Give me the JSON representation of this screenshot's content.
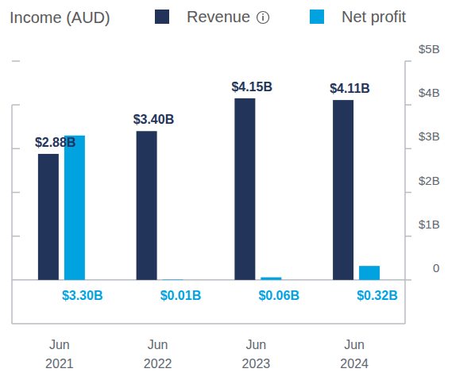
{
  "chart_data": {
    "type": "bar",
    "title": "Income (AUD)",
    "categories": [
      "Jun 2021",
      "Jun 2022",
      "Jun 2023",
      "Jun 2024"
    ],
    "series": [
      {
        "name": "Revenue",
        "color": "#23345a",
        "values": [
          2.88,
          3.4,
          4.15,
          4.11
        ],
        "value_labels": [
          "$2.88B",
          "$3.40B",
          "$4.15B",
          "$4.11B"
        ]
      },
      {
        "name": "Net profit",
        "color": "#00a3e0",
        "values": [
          3.3,
          0.01,
          0.06,
          0.32
        ],
        "value_labels": [
          "$3.30B",
          "$0.01B",
          "$0.06B",
          "$0.32B"
        ]
      }
    ],
    "ylim": [
      -1,
      5
    ],
    "yticks": [
      0,
      {
        "value": 1,
        "label": "$1B"
      },
      {
        "value": 2,
        "label": "$2B"
      },
      {
        "value": 3,
        "label": "$3B"
      },
      {
        "value": 4,
        "label": "$4B"
      },
      {
        "value": 5,
        "label": "$5B"
      }
    ],
    "grid": false,
    "legend": "top",
    "data_labels": true
  }
}
